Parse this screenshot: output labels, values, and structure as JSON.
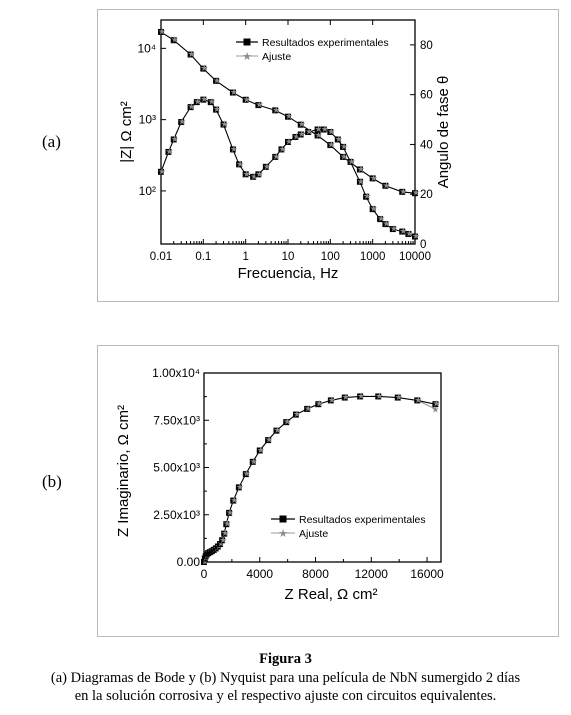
{
  "labels": {
    "a": "(a)",
    "b": "(b)"
  },
  "caption": {
    "title": "Figura 3",
    "line1": "(a) Diagramas de Bode y (b) Nyquist para una película de NbN sumergido 2 días",
    "line2": "en la solución corrosiva y el respectivo ajuste con circuitos equivalentes."
  },
  "chart_data": [
    {
      "type": "line",
      "xscale": "log",
      "xlabel": "Frecuencia, Hz",
      "ylabel": "|Z| Ω cm²",
      "ylabel_right": "Angulo de fase θ",
      "xlim": [
        0.01,
        10000
      ],
      "ylim": [
        18,
        25000
      ],
      "ylim_right": [
        0,
        90
      ],
      "x_ticks": [
        "0.01",
        "0.1",
        "1",
        "10",
        "100",
        "1000",
        "10000"
      ],
      "y_ticks": [
        "10²",
        "10³",
        "10⁴"
      ],
      "y_ticks_right": [
        "0",
        "20",
        "40",
        "60",
        "80"
      ],
      "legend": "top-right",
      "series": [
        {
          "name": "Resultados experimentales",
          "marker": "square",
          "color": "#000000"
        },
        {
          "name": "Ajuste",
          "marker": "star",
          "color": "#9a9a9a"
        }
      ],
      "modulus": {
        "x": [
          0.01,
          0.02,
          0.05,
          0.1,
          0.2,
          0.5,
          1,
          2,
          5,
          10,
          20,
          50,
          100,
          200,
          500,
          1000,
          2000,
          5000,
          10000
        ],
        "y": [
          17000,
          13000,
          8200,
          5200,
          3500,
          2400,
          1900,
          1600,
          1350,
          1100,
          850,
          600,
          440,
          300,
          200,
          150,
          118,
          97,
          93
        ]
      },
      "phase": {
        "x": [
          0.01,
          0.015,
          0.02,
          0.03,
          0.05,
          0.07,
          0.1,
          0.15,
          0.2,
          0.3,
          0.5,
          0.7,
          1,
          1.5,
          2,
          3,
          5,
          7,
          10,
          15,
          20,
          30,
          50,
          70,
          100,
          150,
          200,
          300,
          500,
          700,
          1000,
          1500,
          2000,
          3000,
          5000,
          7000,
          10000
        ],
        "y": [
          29,
          37,
          42,
          49,
          55,
          57,
          58,
          57,
          54,
          48,
          38,
          32,
          28,
          27,
          28,
          31,
          35,
          38,
          41,
          43,
          44,
          45,
          46,
          46,
          45,
          42,
          39,
          33,
          25,
          19,
          14,
          10,
          8,
          6,
          5,
          4,
          3
        ]
      }
    },
    {
      "type": "scatter",
      "xlabel": "Z Real, Ω cm²",
      "ylabel": "Z Imaginario, Ω cm²",
      "xlim": [
        0,
        17000
      ],
      "ylim": [
        0,
        10000
      ],
      "x_ticks": [
        "0",
        "4000",
        "8000",
        "12000",
        "16000"
      ],
      "y_ticks": [
        "0.00",
        "2.50x10³",
        "5.00x10³",
        "7.50x10³",
        "1.00x10⁴"
      ],
      "legend": "lower-right",
      "series": [
        {
          "name": "Resultados experimentales",
          "marker": "square",
          "color": "#000000"
        },
        {
          "name": "Ajuste",
          "marker": "star",
          "color": "#9a9a9a"
        }
      ],
      "points": {
        "x": [
          0,
          60,
          120,
          200,
          300,
          420,
          560,
          700,
          850,
          1000,
          1150,
          1300,
          1450,
          1600,
          1800,
          2100,
          2500,
          3000,
          3500,
          4000,
          4600,
          5200,
          5900,
          6600,
          7400,
          8200,
          9100,
          10100,
          11200,
          12500,
          13900,
          15300,
          16600
        ],
        "y": [
          0,
          180,
          300,
          400,
          470,
          520,
          570,
          640,
          720,
          820,
          950,
          1150,
          1500,
          2000,
          2600,
          3250,
          3950,
          4650,
          5300,
          5900,
          6450,
          6950,
          7400,
          7800,
          8100,
          8350,
          8550,
          8700,
          8760,
          8760,
          8700,
          8550,
          8350
        ]
      },
      "fit_end": {
        "x": 16600,
        "y": 8100
      }
    }
  ]
}
